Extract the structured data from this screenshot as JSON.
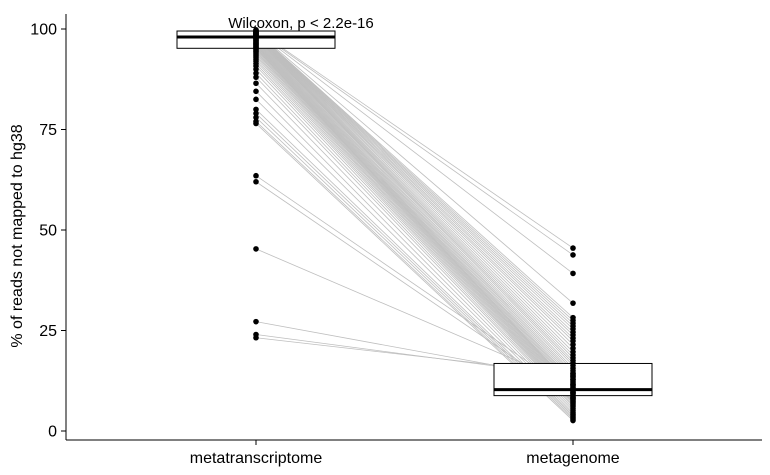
{
  "chart_data": {
    "type": "boxplot-paired",
    "categories": [
      "metatranscriptome",
      "metagenome"
    ],
    "ylabel": "% of reads not mapped to hg38",
    "xlabel": "",
    "ylim": [
      0,
      100
    ],
    "yticks": [
      "0",
      "25",
      "50",
      "75",
      "100"
    ],
    "annotation": "Wilcoxon, p < 2.2e-16",
    "grid": false,
    "colors": {
      "line": "#bebebe",
      "point": "#000000",
      "box": "#000000"
    },
    "boxes": [
      {
        "name": "metatranscriptome",
        "q1": 95.2,
        "median": 98.0,
        "q3": 99.5
      },
      {
        "name": "metagenome",
        "q1": 8.8,
        "median": 10.3,
        "q3": 16.8
      }
    ],
    "pairs": [
      [
        99.8,
        45.5
      ],
      [
        99.6,
        43.8
      ],
      [
        99.5,
        39.2
      ],
      [
        99.4,
        31.8
      ],
      [
        99.3,
        28.2
      ],
      [
        99.2,
        27.5
      ],
      [
        99.1,
        26.8
      ],
      [
        99.0,
        26.1
      ],
      [
        98.9,
        25.4
      ],
      [
        98.8,
        24.6
      ],
      [
        98.7,
        23.9
      ],
      [
        98.6,
        23.1
      ],
      [
        98.5,
        22.4
      ],
      [
        98.4,
        21.5
      ],
      [
        98.3,
        20.6
      ],
      [
        98.2,
        19.7
      ],
      [
        98.1,
        18.9
      ],
      [
        98.0,
        18.2
      ],
      [
        97.9,
        17.5
      ],
      [
        97.8,
        16.9
      ],
      [
        97.7,
        16.3
      ],
      [
        97.5,
        15.6
      ],
      [
        97.3,
        15.0
      ],
      [
        97.1,
        14.4
      ],
      [
        96.9,
        13.9
      ],
      [
        96.7,
        13.4
      ],
      [
        96.5,
        12.9
      ],
      [
        96.3,
        12.4
      ],
      [
        96.1,
        12.0
      ],
      [
        95.9,
        11.6
      ],
      [
        95.7,
        11.2
      ],
      [
        95.5,
        10.8
      ],
      [
        95.3,
        10.5
      ],
      [
        95.1,
        10.2
      ],
      [
        94.8,
        9.9
      ],
      [
        94.5,
        9.6
      ],
      [
        94.2,
        9.3
      ],
      [
        93.8,
        9.0
      ],
      [
        93.4,
        8.7
      ],
      [
        93.0,
        8.4
      ],
      [
        92.5,
        8.1
      ],
      [
        92.0,
        7.8
      ],
      [
        91.4,
        7.5
      ],
      [
        90.8,
        7.2
      ],
      [
        90.0,
        6.9
      ],
      [
        89.0,
        6.5
      ],
      [
        88.0,
        6.1
      ],
      [
        86.5,
        5.6
      ],
      [
        84.5,
        5.1
      ],
      [
        82.5,
        4.6
      ],
      [
        80.0,
        4.2
      ],
      [
        79.0,
        3.8
      ],
      [
        78.0,
        3.4
      ],
      [
        77.0,
        3.0
      ],
      [
        76.5,
        2.6
      ],
      [
        63.5,
        9.5
      ],
      [
        62.0,
        8.2
      ],
      [
        45.3,
        11.5
      ],
      [
        27.2,
        12.8
      ],
      [
        24.0,
        13.6
      ],
      [
        23.2,
        14.2
      ]
    ]
  }
}
